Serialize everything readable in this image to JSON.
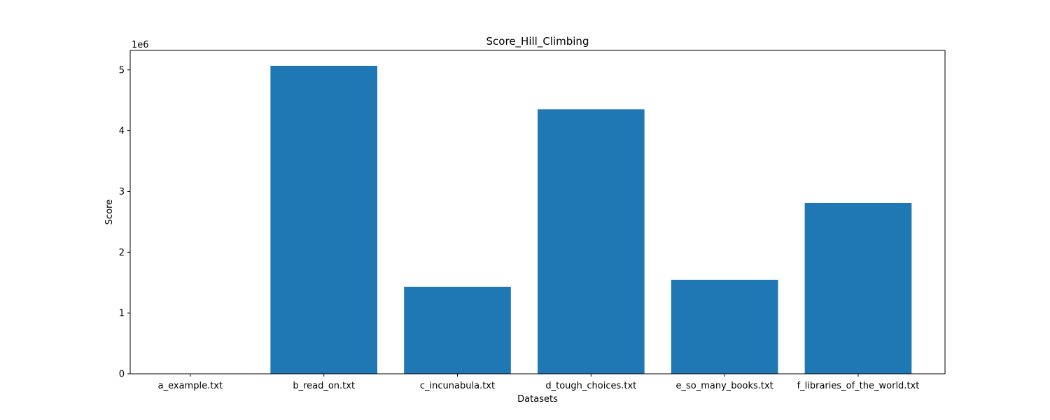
{
  "chart_data": {
    "type": "bar",
    "title": "Score_Hill_Climbing",
    "xlabel": "Datasets",
    "ylabel": "Score",
    "y_offset_label": "1e6",
    "categories": [
      "a_example.txt",
      "b_read_on.txt",
      "c_incunabula.txt",
      "d_tough_choices.txt",
      "e_so_many_books.txt",
      "f_libraries_of_the_world.txt"
    ],
    "values": [
      21,
      5067000,
      1430000,
      4350000,
      1545000,
      2810000
    ],
    "ylim": [
      0,
      5320000
    ],
    "yticks": [
      0,
      1000000,
      2000000,
      3000000,
      4000000,
      5000000
    ],
    "ytick_labels": [
      "0",
      "1",
      "2",
      "3",
      "4",
      "5"
    ],
    "grid": false,
    "bar_color": "#1f77b4"
  }
}
